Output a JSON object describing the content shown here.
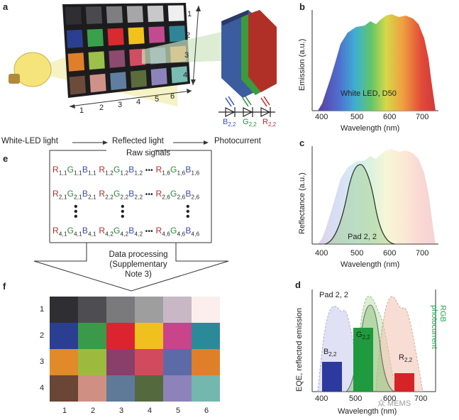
{
  "panel_labels": {
    "a": "a",
    "b": "b",
    "c": "c",
    "d": "d",
    "e": "e",
    "f": "f"
  },
  "panel_a": {
    "rows": [
      "1",
      "2",
      "3",
      "4"
    ],
    "cols": [
      "1",
      "2",
      "3",
      "4",
      "5",
      "6"
    ],
    "flow": [
      "White-LED light",
      "Reflected light",
      "Photocurrent"
    ],
    "diodes": [
      {
        "main": "B",
        "sub": "2,2",
        "color": "#3a4db0"
      },
      {
        "main": "G",
        "sub": "2,2",
        "color": "#2e8b3a"
      },
      {
        "main": "R",
        "sub": "2,2",
        "color": "#c0282a"
      }
    ],
    "chart_colors": [
      [
        "#2f2f33",
        "#4a4a4e",
        "#7e7e80",
        "#a6a6a8",
        "#c8c8ca",
        "#efefef"
      ],
      [
        "#2b3f91",
        "#3aa04b",
        "#d92a30",
        "#f1c21c",
        "#c24b8f",
        "#2f8597"
      ],
      [
        "#e07f2a",
        "#9cc04a",
        "#8c4a6e",
        "#cf4f60",
        "#5c6eaa",
        "#e47f2f"
      ],
      [
        "#6b4b3a",
        "#d09288",
        "#607fa0",
        "#5a6b3c",
        "#8d83bc",
        "#79bcb4"
      ]
    ]
  },
  "panel_b": {
    "ylabel": "Emission (a.u.)",
    "xlabel": "Wavelength (nm)",
    "ticks": [
      "400",
      "500",
      "600",
      "700"
    ],
    "annotation": "White LED, D50"
  },
  "panel_c": {
    "ylabel": "Reflectance (a.u.)",
    "xlabel": "Wavelength (nm)",
    "ticks": [
      "400",
      "500",
      "600",
      "700"
    ],
    "annotation": "Pad 2, 2"
  },
  "panel_d": {
    "ylabel_left": "EQE, reflected emission",
    "ylabel_right": "RGB photocurrent",
    "xlabel": "Wavelength (nm)",
    "ticks": [
      "400",
      "500",
      "600",
      "700"
    ],
    "annotation": "Pad 2, 2",
    "bars": [
      {
        "main": "B",
        "sub": "2,2"
      },
      {
        "main": "G",
        "sub": "2,2"
      },
      {
        "main": "R",
        "sub": "2,2"
      }
    ],
    "watermark": "众 MEMS"
  },
  "panel_e": {
    "title": "Raw signals",
    "rows": [
      [
        "R1,1G1,1B1,1",
        "R1,2G1,2B1,2",
        "R1,6G1,6B1,6"
      ],
      [
        "R2,1G2,1B2,1",
        "R2,2G2,2B2,2",
        "R2,6G2,6B2,6"
      ],
      [
        "R4,1G4,1B4,1",
        "R4,2G4,2B4,2",
        "R4,6G4,6B4,6"
      ]
    ],
    "ellipsis": "•••",
    "processing": [
      "Data processing",
      "(Supplementary",
      "Note 3)"
    ]
  },
  "panel_f": {
    "rows": [
      "1",
      "2",
      "3",
      "4"
    ],
    "cols": [
      "1",
      "2",
      "3",
      "4",
      "5",
      "6"
    ],
    "colors": [
      [
        "#2f2f33",
        "#4e4e52",
        "#7a7a7c",
        "#9e9e9f",
        "#c8b8c6",
        "#fbeeec"
      ],
      [
        "#2b3f91",
        "#3a9a4a",
        "#db2430",
        "#f0c01e",
        "#c9448a",
        "#2b8a9a"
      ],
      [
        "#e08a2a",
        "#9cbb3e",
        "#8a3e6a",
        "#d24a5e",
        "#5c6aa8",
        "#e07f2a"
      ],
      [
        "#6a4636",
        "#cf8f82",
        "#5e7a98",
        "#546a3e",
        "#8e82ba",
        "#74b7ae"
      ]
    ]
  }
}
